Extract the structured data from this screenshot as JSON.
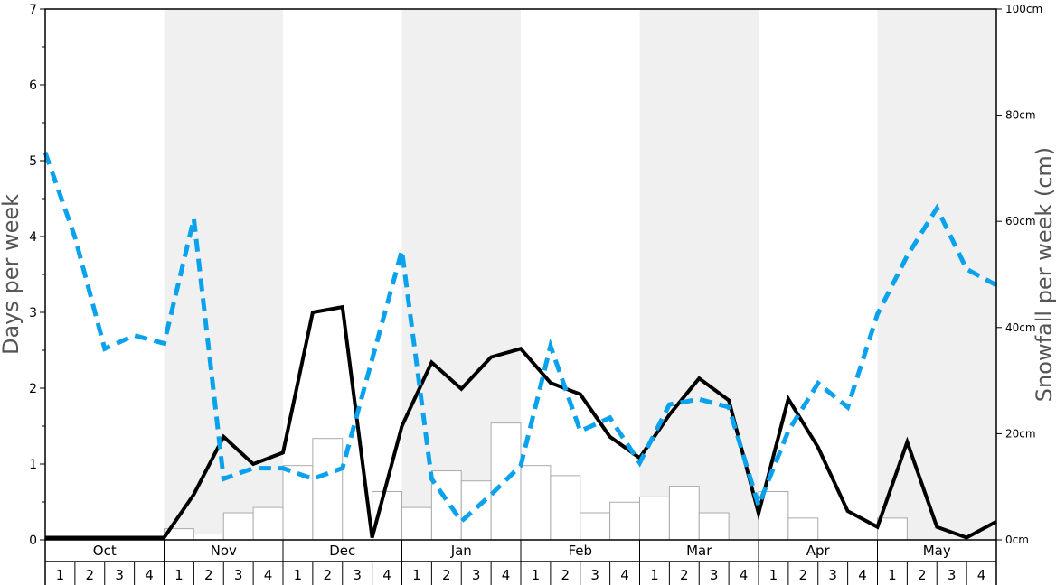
{
  "chart_data": {
    "type": "bar+line",
    "months": [
      "Oct",
      "Nov",
      "Dec",
      "Jan",
      "Feb",
      "Mar",
      "Apr",
      "May"
    ],
    "week_labels": [
      "1",
      "2",
      "3",
      "4"
    ],
    "y_left": {
      "label": "Days per week",
      "range": [
        0,
        7
      ],
      "major_ticks": [
        0,
        1,
        2,
        3,
        4,
        5,
        6,
        7
      ],
      "minor_ticks": [
        0.5,
        1.5,
        2.5,
        3.5,
        4.5,
        5.5,
        6.5
      ]
    },
    "y_right": {
      "label": "Snowfall per week (cm)",
      "range": [
        0,
        100
      ],
      "ticks": [
        0,
        20,
        40,
        60,
        80,
        100
      ],
      "tick_labels": [
        "0cm",
        "20cm",
        "40cm",
        "60cm",
        "80cm",
        "100cm"
      ]
    },
    "snowfall_bars_cm": [
      0,
      0,
      0,
      0,
      2.1,
      1.1,
      5.1,
      6.1,
      14,
      19.1,
      0,
      9.1,
      6.1,
      13,
      11.1,
      22,
      14,
      12.1,
      5.1,
      7.1,
      8.1,
      10.1,
      5.1,
      0,
      9.1,
      4.1,
      0,
      0,
      4.1,
      0,
      0,
      0
    ],
    "series": [
      {
        "axis": "left",
        "color": "#000000",
        "style": "solid",
        "values": [
          0.03,
          0.03,
          0.03,
          0.03,
          0.03,
          0.6,
          1.36,
          1.0,
          1.15,
          3.0,
          3.07,
          0.03,
          1.5,
          2.34,
          1.99,
          2.41,
          2.52,
          2.07,
          1.92,
          1.36,
          1.08,
          1.65,
          2.13,
          1.84,
          0.35,
          1.86,
          1.22,
          0.38,
          0.17,
          1.29,
          0.17,
          0.03,
          0.24
        ]
      },
      {
        "axis": "right",
        "color": "#0aa2ec",
        "style": "dashed",
        "values": [
          73,
          57,
          36,
          38.5,
          37,
          60.5,
          11.5,
          13.5,
          13.5,
          11.5,
          13.5,
          34,
          54.5,
          11.5,
          3.5,
          8.5,
          14,
          36.5,
          20.5,
          23,
          14.5,
          25.5,
          26.5,
          25,
          6.5,
          20.5,
          29.5,
          25,
          42.5,
          53.5,
          62.5,
          51,
          48
        ]
      }
    ],
    "grid": false,
    "legend": "none",
    "shaded_months": [
      "Nov",
      "Jan",
      "Mar",
      "May"
    ],
    "shade_color": "#f0f0f0",
    "bar_edge_color": "#aaaaaa"
  }
}
